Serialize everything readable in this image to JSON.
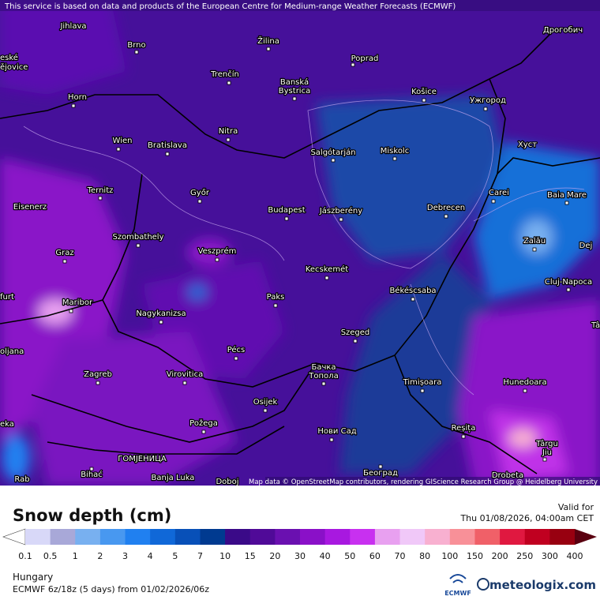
{
  "banner": "This service is based on data and products of the European Centre for Medium-range Weather Forecasts (ECMWF)",
  "attribution": "Map data © OpenStreetMap contributors, rendering GIScience Research Group @ Heidelberg University",
  "cities": [
    "Jihlava",
    "Brno",
    "Žilina",
    "Poprad",
    "Дрогобич",
    "eské",
    "ějovice",
    "Trenčín",
    "Banská",
    "Bystrica",
    "Košice",
    "Ужгород",
    "Horn",
    "Nitra",
    "Wien",
    "Bratislava",
    "Хуст",
    "Salgótarján",
    "Miskolc",
    "Ternitz",
    "Győr",
    "Carei",
    "Baia Mare",
    "Eisenerz",
    "Budapest",
    "Jászberény",
    "Debrecen",
    "Szombathely",
    "Zalău",
    "Graz",
    "Veszprém",
    "Dej",
    "Kecskemét",
    "Cluj-Napoca",
    "Békéscsaba",
    "furt",
    "Paks",
    "Maribor",
    "Nagykanizsa",
    "Tâ",
    "Szeged",
    "oljana",
    "Pécs",
    "Бачка",
    "Топола",
    "Zagreb",
    "Virovitica",
    "Timișoara",
    "Hunedoara",
    "Osijek",
    "eka",
    "Požega",
    "Нови Сад",
    "Reșița",
    "Târgu",
    "Jiu",
    "ГОМЈЕНИЦА",
    "Bihać",
    "Banja Luka",
    "Београд",
    "Drobeta",
    "Rab",
    "Doboj"
  ],
  "legend": {
    "title": "Snow depth (cm)",
    "labels": [
      "0.1",
      "0.5",
      "1",
      "2",
      "3",
      "4",
      "5",
      "7",
      "10",
      "15",
      "20",
      "30",
      "40",
      "50",
      "60",
      "70",
      "80",
      "100",
      "150",
      "200",
      "250",
      "300",
      "400"
    ],
    "colors": [
      "#d8d8f8",
      "#a8a8d8",
      "#78b0f0",
      "#4898f0",
      "#2080f0",
      "#1068d8",
      "#0850b8",
      "#003a90",
      "#3a0a88",
      "#500a98",
      "#6a10b0",
      "#8a10c8",
      "#a818e0",
      "#c830f0",
      "#e8a0f0",
      "#f0c8f8",
      "#f8b0d0",
      "#f89098",
      "#f06068",
      "#e01840",
      "#c00020",
      "#980010"
    ]
  },
  "valid_label": "Valid for",
  "valid_time": "Thu 01/08/2026, 04:00am CET",
  "region": "Hungary",
  "model_run": "ECMWF 6z/18z (5 days) from 01/02/2026/06z",
  "ecmwf_logo": "ECMWF",
  "brand": "meteologix.com"
}
